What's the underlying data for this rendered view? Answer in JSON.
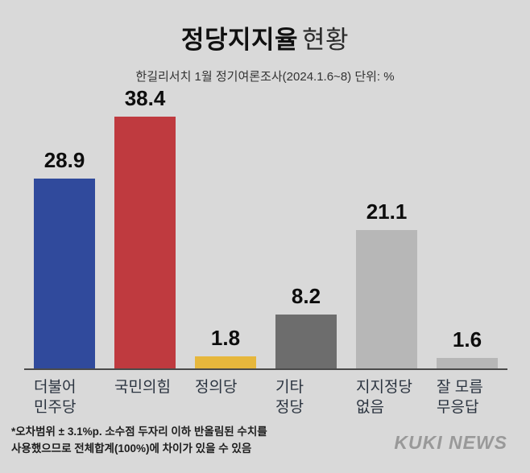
{
  "background": "#d9d9d9",
  "header": {
    "title_bold": "정당지지율",
    "title_light": "현황",
    "subtitle": "한길리서치 1월 정기여론조사(2024.1.6~8) 단위: %"
  },
  "chart_data": {
    "type": "bar",
    "title": "정당지지율 현황",
    "subtitle": "한길리서치 1월 정기여론조사(2024.1.6~8) 단위: %",
    "categories": [
      "더불어\n민주당",
      "국민의힘",
      "정의당",
      "기타\n정당",
      "지지정당\n없음",
      "잘 모름\n무응답"
    ],
    "values": [
      28.9,
      38.4,
      1.8,
      8.2,
      21.1,
      1.6
    ],
    "colors": [
      "#304a9c",
      "#bf3a3f",
      "#e6b73c",
      "#6d6d6d",
      "#b7b7b7",
      "#b7b7b7"
    ],
    "unit": "%",
    "ylim": [
      0,
      40
    ],
    "grid": false,
    "value_labels": true,
    "legend": "none"
  },
  "footnote": {
    "line1": "*오차범위 ± 3.1%p. 소수점 두자리 이하 반올림된 수치를",
    "line2": "사용했으므로 전체합계(100%)에 차이가 있을 수 있음"
  },
  "logo": "KUKI NEWS"
}
